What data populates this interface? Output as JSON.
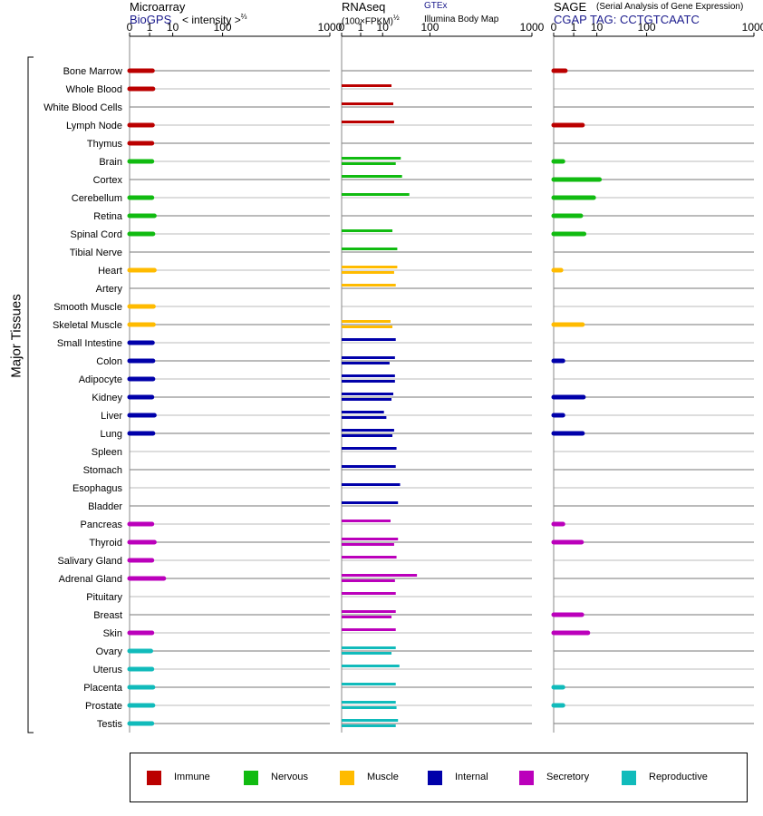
{
  "panels": {
    "microarray": {
      "title": "Microarray",
      "subtitle": "BioGPS",
      "scale_label": "< intensity >",
      "scale_exponent": "⅔",
      "ticks": [
        "0",
        "1",
        "10",
        "100",
        "1000"
      ]
    },
    "rnaseq": {
      "title": "RNAseq",
      "scale_label": "(100×FPKM)",
      "scale_exponent": "½",
      "source1": "GTEx",
      "source2": "Illumina Body Map",
      "ticks": [
        "0",
        "1",
        "10",
        "100",
        "1000"
      ]
    },
    "sage": {
      "title": "SAGE",
      "description": "(Serial Analysis of Gene Expression)",
      "tag": "CGAP  TAG: CCTGTCAATC",
      "ticks": [
        "0",
        "1",
        "10",
        "100",
        "1000"
      ]
    }
  },
  "side_label": "Major Tissues",
  "colors": {
    "Immune": "#bb0000",
    "Nervous": "#11bb11",
    "Muscle": "#ffbb00",
    "Internal": "#0000aa",
    "Secretory": "#bb00bb",
    "Reproductive": "#11bbbb"
  },
  "legend": [
    "Immune",
    "Nervous",
    "Muscle",
    "Internal",
    "Secretory",
    "Reproductive"
  ],
  "chart_data": {
    "type": "bar",
    "scale": "power-root axis (0, 1, 10, 100, 1000)",
    "xlim": [
      0,
      1000
    ],
    "grid": true,
    "categories": [
      "Bone Marrow",
      "Whole Blood",
      "White Blood Cells",
      "Lymph Node",
      "Thymus",
      "Brain",
      "Cortex",
      "Cerebellum",
      "Retina",
      "Spinal Cord",
      "Tibial Nerve",
      "Heart",
      "Artery",
      "Smooth Muscle",
      "Skeletal Muscle",
      "Small Intestine",
      "Colon",
      "Adipocyte",
      "Kidney",
      "Liver",
      "Lung",
      "Spleen",
      "Stomach",
      "Esophagus",
      "Bladder",
      "Pancreas",
      "Thyroid",
      "Salivary Gland",
      "Adrenal Gland",
      "Pituitary",
      "Breast",
      "Skin",
      "Ovary",
      "Uterus",
      "Placenta",
      "Prostate",
      "Testis"
    ],
    "groups": [
      "Immune",
      "Immune",
      "Immune",
      "Immune",
      "Immune",
      "Nervous",
      "Nervous",
      "Nervous",
      "Nervous",
      "Nervous",
      "Nervous",
      "Muscle",
      "Muscle",
      "Muscle",
      "Muscle",
      "Internal",
      "Internal",
      "Internal",
      "Internal",
      "Internal",
      "Internal",
      "Internal",
      "Internal",
      "Internal",
      "Internal",
      "Secretory",
      "Secretory",
      "Secretory",
      "Secretory",
      "Secretory",
      "Secretory",
      "Secretory",
      "Reproductive",
      "Reproductive",
      "Reproductive",
      "Reproductive",
      "Reproductive"
    ],
    "microarray": [
      1.5,
      1.6,
      null,
      1.5,
      1.4,
      1.4,
      null,
      1.4,
      1.9,
      1.6,
      null,
      1.9,
      null,
      1.7,
      1.7,
      1.5,
      1.6,
      1.6,
      1.4,
      1.9,
      1.6,
      null,
      null,
      null,
      null,
      1.4,
      1.9,
      1.4,
      5,
      null,
      null,
      1.4,
      1.2,
      1.4,
      1.6,
      1.6,
      1.4
    ],
    "rnaseq_gtex": [
      null,
      18,
      20,
      21,
      null,
      30,
      32,
      45,
      null,
      19,
      25,
      25,
      23,
      null,
      17,
      23,
      22,
      22,
      20,
      11,
      21,
      24,
      23,
      29,
      26,
      17,
      26,
      24,
      62,
      23,
      23,
      23,
      23,
      28,
      23,
      23,
      26
    ],
    "rnaseq_ibm": [
      null,
      null,
      null,
      null,
      null,
      23,
      null,
      null,
      null,
      null,
      null,
      21,
      null,
      null,
      19,
      null,
      16,
      22,
      18,
      13,
      19,
      null,
      null,
      null,
      null,
      null,
      21,
      null,
      22,
      null,
      18,
      null,
      18,
      null,
      null,
      24,
      23
    ],
    "sage": [
      0.2,
      null,
      null,
      3,
      null,
      0.1,
      12,
      8,
      2.5,
      3.5,
      null,
      0.05,
      null,
      null,
      3,
      null,
      0.1,
      null,
      3.3,
      0.1,
      3,
      null,
      null,
      null,
      null,
      0.1,
      2.7,
      null,
      null,
      null,
      2.8,
      5,
      null,
      null,
      0.1,
      0.1,
      null
    ]
  }
}
